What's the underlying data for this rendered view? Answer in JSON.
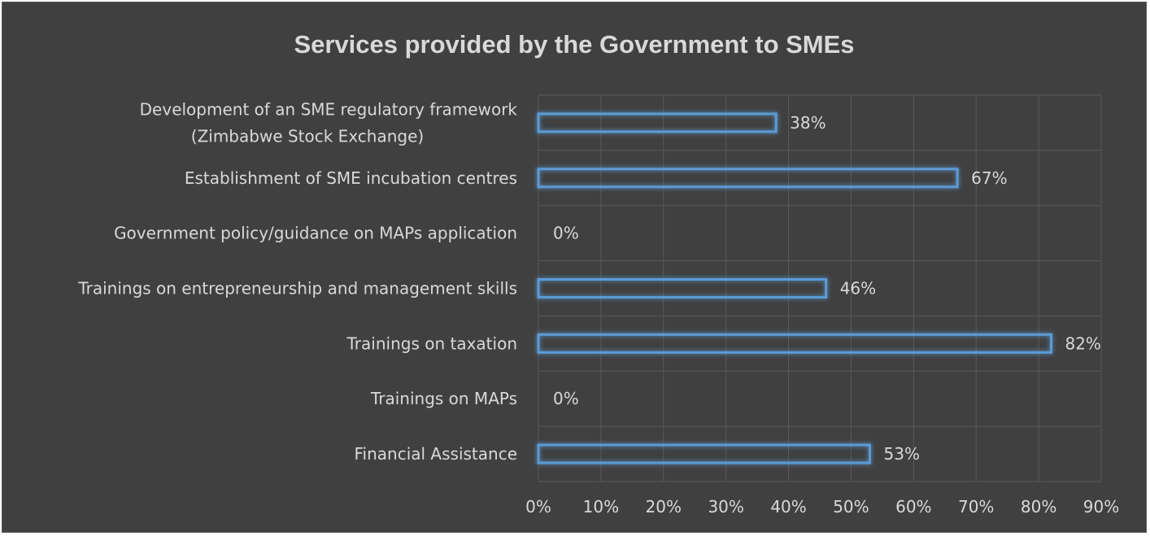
{
  "chart_data": {
    "type": "bar",
    "orientation": "horizontal",
    "title": "Services provided by the Government to SMEs",
    "categories": [
      [
        "Development of an SME regulatory framework",
        "(Zimbabwe Stock Exchange)"
      ],
      [
        "Establishment of SME incubation centres"
      ],
      [
        "Government policy/guidance on MAPs application"
      ],
      [
        "Trainings  on entrepreneurship and management skills"
      ],
      [
        "Trainings  on taxation"
      ],
      [
        "Trainings on MAPs"
      ],
      [
        "Financial Assistance"
      ]
    ],
    "values": [
      38,
      67,
      0,
      46,
      82,
      0,
      53
    ],
    "data_labels": [
      "38%",
      "67%",
      "0%",
      "46%",
      "82%",
      "0%",
      "53%"
    ],
    "xlim": [
      0,
      90
    ],
    "x_ticks": [
      "0%",
      "10%",
      "20%",
      "30%",
      "40%",
      "50%",
      "60%",
      "70%",
      "80%",
      "90%"
    ],
    "grid": true,
    "legend": "none",
    "colors": {
      "background": "#404040",
      "bar_outline": "#5b9bd5",
      "text": "#d9d9d9",
      "grid": "#595959"
    }
  }
}
